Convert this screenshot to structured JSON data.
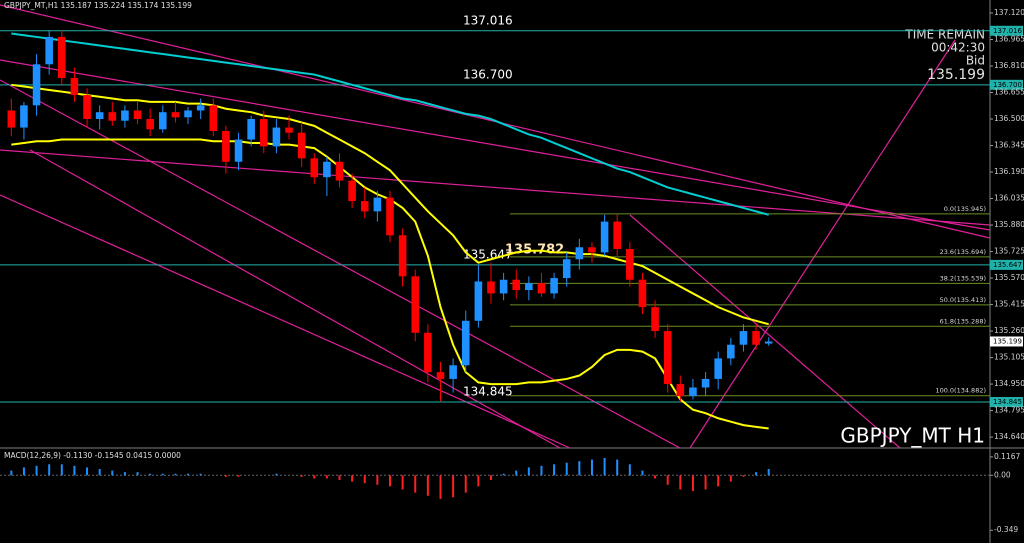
{
  "chart_data": [
    {
      "type": "candlestick",
      "title": "GBPJPY_MT,H1",
      "watermark": "GBPJPY_MT H1",
      "info": [
        "TIME REMAIN",
        "00:42:30",
        "Bid"
      ],
      "up_color": "#1e90ff",
      "down_color": "#ff0000",
      "open": [
        136.55,
        136.45,
        136.58,
        136.82,
        136.98,
        136.74,
        136.64,
        136.5,
        136.54,
        136.49,
        136.55,
        136.5,
        136.44,
        136.54,
        136.51,
        136.55,
        136.58,
        136.43,
        136.25,
        136.38,
        136.5,
        136.34,
        136.45,
        136.42,
        136.27,
        136.16,
        136.25,
        136.14,
        136.02,
        135.96,
        136.04,
        135.82,
        135.58,
        135.25,
        135.02,
        134.98,
        135.06,
        135.32,
        135.55,
        135.48,
        135.56,
        135.5,
        135.54,
        135.48,
        135.57,
        135.68,
        135.75,
        135.72,
        135.9,
        135.74,
        135.56,
        135.4,
        135.26,
        134.95,
        134.88,
        134.93,
        134.98,
        135.1,
        135.18,
        135.26,
        135.187
      ],
      "high": [
        136.62,
        136.6,
        136.88,
        137.02,
        137.02,
        136.8,
        136.68,
        136.58,
        136.6,
        136.58,
        136.6,
        136.56,
        136.58,
        136.6,
        136.57,
        136.62,
        136.62,
        136.46,
        136.42,
        136.52,
        136.55,
        136.5,
        136.52,
        136.48,
        136.3,
        136.28,
        136.3,
        136.18,
        136.1,
        136.08,
        136.08,
        135.86,
        135.62,
        135.3,
        135.08,
        135.1,
        135.38,
        135.65,
        135.66,
        135.6,
        135.62,
        135.58,
        135.6,
        135.6,
        135.72,
        135.8,
        135.78,
        135.94,
        135.945,
        135.78,
        135.6,
        135.44,
        135.3,
        135,
        134.98,
        135.02,
        135.14,
        135.22,
        135.3,
        135.3,
        135.224
      ],
      "low": [
        136.4,
        136.38,
        136.52,
        136.76,
        136.7,
        136.6,
        136.45,
        136.44,
        136.46,
        136.45,
        136.47,
        136.4,
        136.42,
        136.48,
        136.47,
        136.5,
        136.4,
        136.18,
        136.2,
        136.34,
        136.3,
        136.3,
        136.38,
        136.22,
        136.12,
        136.05,
        136.1,
        135.98,
        135.92,
        135.9,
        135.78,
        135.52,
        135.2,
        134.96,
        134.85,
        134.9,
        135.02,
        135.28,
        135.42,
        135.44,
        135.45,
        135.44,
        135.46,
        135.45,
        135.52,
        135.62,
        135.66,
        135.7,
        135.7,
        135.52,
        135.36,
        135.22,
        134.9,
        134.845,
        134.86,
        134.88,
        134.92,
        135.06,
        135.14,
        135.15,
        135.174
      ],
      "close": [
        136.45,
        136.58,
        136.82,
        136.98,
        136.74,
        136.64,
        136.5,
        136.54,
        136.49,
        136.55,
        136.5,
        136.44,
        136.54,
        136.51,
        136.55,
        136.58,
        136.43,
        136.25,
        136.38,
        136.5,
        136.34,
        136.45,
        136.42,
        136.27,
        136.16,
        136.25,
        136.14,
        136.02,
        135.96,
        136.04,
        135.82,
        135.58,
        135.25,
        135.02,
        134.98,
        135.06,
        135.32,
        135.55,
        135.48,
        135.56,
        135.5,
        135.54,
        135.48,
        135.57,
        135.68,
        135.75,
        135.72,
        135.9,
        135.74,
        135.56,
        135.4,
        135.26,
        134.95,
        134.88,
        134.93,
        134.98,
        135.1,
        135.18,
        135.26,
        135.18,
        135.199
      ],
      "series": [
        {
          "color": "#ffff00",
          "values": [
            136.7,
            136.69,
            136.68,
            136.67,
            136.66,
            136.65,
            136.64,
            136.63,
            136.62,
            136.61,
            136.61,
            136.6,
            136.6,
            136.6,
            136.59,
            136.59,
            136.58,
            136.56,
            136.55,
            136.54,
            136.52,
            136.51,
            136.5,
            136.48,
            136.46,
            136.42,
            136.38,
            136.34,
            136.3,
            136.25,
            136.2,
            136.12,
            136.04,
            135.96,
            135.89,
            135.82,
            135.72,
            135.66,
            135.68,
            135.7,
            135.72,
            135.73,
            135.73,
            135.72,
            135.72,
            135.71,
            135.71,
            135.7,
            135.68,
            135.66,
            135.64,
            135.6,
            135.56,
            135.52,
            135.48,
            135.44,
            135.4,
            135.37,
            135.34,
            135.32,
            135.3
          ]
        },
        {
          "color": "#ffff00",
          "values": [
            136.35,
            136.36,
            136.37,
            136.37,
            136.38,
            136.38,
            136.38,
            136.38,
            136.38,
            136.38,
            136.38,
            136.38,
            136.38,
            136.38,
            136.38,
            136.38,
            136.37,
            136.37,
            136.37,
            136.36,
            136.36,
            136.35,
            136.35,
            136.34,
            136.33,
            136.28,
            136.22,
            136.16,
            136.1,
            136.06,
            136.03,
            135.98,
            135.9,
            135.7,
            135.4,
            135.18,
            135.02,
            134.96,
            134.95,
            134.95,
            134.95,
            134.96,
            134.96,
            134.97,
            134.98,
            135,
            135.05,
            135.12,
            135.15,
            135.15,
            135.14,
            135.1,
            134.98,
            134.86,
            134.8,
            134.78,
            134.75,
            134.73,
            134.71,
            134.7,
            134.69
          ]
        },
        {
          "color": "#00ced1",
          "values": [
            137,
            136.99,
            136.98,
            136.97,
            136.96,
            136.95,
            136.94,
            136.93,
            136.92,
            136.91,
            136.9,
            136.89,
            136.88,
            136.87,
            136.86,
            136.85,
            136.84,
            136.83,
            136.82,
            136.81,
            136.8,
            136.79,
            136.78,
            136.77,
            136.76,
            136.74,
            136.72,
            136.7,
            136.68,
            136.66,
            136.64,
            136.62,
            136.61,
            136.59,
            136.57,
            136.55,
            136.53,
            136.52,
            136.5,
            136.47,
            136.44,
            136.41,
            136.39,
            136.36,
            136.33,
            136.3,
            136.27,
            136.24,
            136.21,
            136.19,
            136.16,
            136.13,
            136.1,
            136.08,
            136.06,
            136.04,
            136.02,
            136,
            135.98,
            135.96,
            135.94
          ]
        }
      ],
      "hlines": [
        137.016,
        {
          "value": 136.7,
          "label": "136.700"
        },
        135.647,
        134.845
      ],
      "annotations": [
        135.782
      ],
      "levels": [
        {
          "value": 135.945,
          "label": "0.0(135.945)"
        },
        {
          "value": 135.694,
          "label": "23.6(135.694)"
        },
        {
          "value": 135.539,
          "label": "38.2(135.539)"
        },
        {
          "value": 135.413,
          "label": "50.0(135.413)"
        },
        {
          "value": 135.288,
          "label": "61.8(135.288)"
        },
        {
          "value": 134.882,
          "label": "100.0(134.882)"
        }
      ],
      "ylim": [
        134.582,
        137.196
      ],
      "yticks": [
        {
          "value": 137.12,
          "label": "137.120"
        },
        136.965,
        {
          "value": 136.81,
          "label": "136.810"
        },
        136.655,
        {
          "value": 136.5,
          "label": "136.500"
        },
        136.345,
        {
          "value": 136.19,
          "label": "136.190"
        },
        136.035,
        {
          "value": 135.88,
          "label": "135.880"
        },
        135.725,
        {
          "value": 135.57,
          "label": "135.570"
        },
        135.415,
        {
          "value": 135.26,
          "label": "135.260"
        },
        135.105,
        {
          "value": 134.95,
          "label": "134.950"
        },
        134.795,
        {
          "value": 134.64,
          "label": "134.640"
        }
      ]
    },
    {
      "type": "bar",
      "title": "MACD(12,26,9) -0.1130 -0.1545 0.0415 0.0000",
      "up_color": "#1e90ff",
      "down_color": "#ff2020",
      "values": [
        0.03,
        0.05,
        0.06,
        0.07,
        0.07,
        0.06,
        0.05,
        0.04,
        0.03,
        0.02,
        0.02,
        0.01,
        0.01,
        0.01,
        0.01,
        0.01,
        0,
        -0.01,
        -0.01,
        0,
        0,
        0.01,
        0,
        -0.01,
        -0.02,
        -0.02,
        -0.03,
        -0.04,
        -0.05,
        -0.06,
        -0.07,
        -0.09,
        -0.11,
        -0.13,
        -0.15,
        -0.14,
        -0.11,
        -0.07,
        -0.03,
        0.01,
        0.03,
        0.05,
        0.06,
        0.07,
        0.08,
        0.09,
        0.1,
        0.11,
        0.1,
        0.07,
        0.03,
        -0.02,
        -0.06,
        -0.09,
        -0.1,
        -0.09,
        -0.07,
        -0.04,
        -0.01,
        0.02,
        0.04
      ],
      "ylim": [
        -0.43,
        0.148
      ],
      "yticks": [
        0.1167,
        {
          "value": 0,
          "label": "0.00"
        },
        -0.349
      ]
    }
  ]
}
